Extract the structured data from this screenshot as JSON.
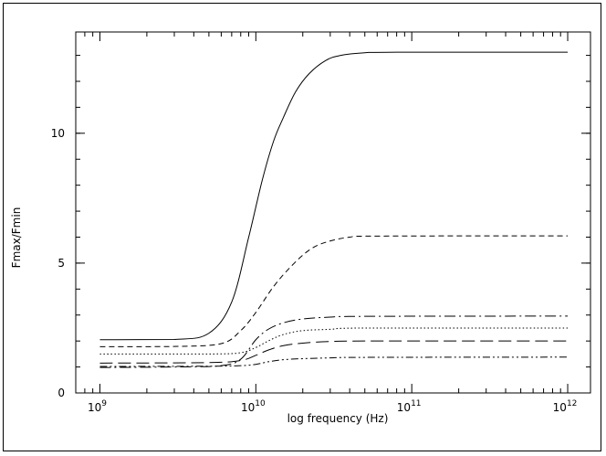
{
  "chart_data": {
    "type": "line",
    "title": "",
    "xlabel": "log frequency (Hz)",
    "ylabel": "Fmax/Fmin",
    "x_scale": "log",
    "xlim": [
      700000000,
      1400000000000
    ],
    "ylim": [
      0,
      13.9
    ],
    "x_ticks": [
      {
        "value": 1000000000,
        "base": "10",
        "exp": "9"
      },
      {
        "value": 10000000000,
        "base": "10",
        "exp": "10"
      },
      {
        "value": 100000000000,
        "base": "10",
        "exp": "11"
      },
      {
        "value": 1000000000000,
        "base": "10",
        "exp": "12"
      }
    ],
    "y_ticks": [
      {
        "value": 0,
        "label": "0"
      },
      {
        "value": 5,
        "label": "5"
      },
      {
        "value": 10,
        "label": "10"
      }
    ],
    "grid": false,
    "legend": "none",
    "series": [
      {
        "style": "solid",
        "x": [
          1000000000,
          3000000000,
          5000000000,
          7000000000,
          9000000000,
          11000000000,
          13000000000,
          15000000000,
          18000000000,
          22000000000,
          28000000000,
          35000000000,
          50000000000,
          80000000000,
          1000000000000
        ],
        "values": [
          2.05,
          2.06,
          2.3,
          3.5,
          6.0,
          8.2,
          9.7,
          10.6,
          11.6,
          12.3,
          12.8,
          13.0,
          13.1,
          13.12,
          13.12
        ]
      },
      {
        "style": "dashed",
        "x": [
          1000000000,
          3000000000,
          6000000000,
          8000000000,
          10000000000,
          13000000000,
          17000000000,
          22000000000,
          28000000000,
          40000000000,
          60000000000,
          1000000000000
        ],
        "values": [
          1.78,
          1.79,
          1.9,
          2.4,
          3.1,
          4.1,
          4.9,
          5.5,
          5.8,
          6.0,
          6.04,
          6.05
        ]
      },
      {
        "style": "dash-dot",
        "x": [
          1000000000,
          3000000000,
          6000000000,
          8000000000,
          10000000000,
          12000000000,
          15000000000,
          20000000000,
          30000000000,
          50000000000,
          1000000000000
        ],
        "values": [
          0.98,
          1.0,
          1.05,
          1.3,
          2.05,
          2.45,
          2.7,
          2.85,
          2.92,
          2.95,
          2.96
        ]
      },
      {
        "style": "dotted",
        "x": [
          1000000000,
          5000000000,
          8000000000,
          10000000000,
          12000000000,
          15000000000,
          20000000000,
          30000000000,
          50000000000,
          1000000000000
        ],
        "values": [
          1.5,
          1.5,
          1.55,
          1.75,
          2.0,
          2.25,
          2.4,
          2.45,
          2.5,
          2.5
        ]
      },
      {
        "style": "long-dash",
        "x": [
          1000000000,
          5000000000,
          8000000000,
          10000000000,
          12000000000,
          15000000000,
          20000000000,
          30000000000,
          50000000000,
          1000000000000
        ],
        "values": [
          1.15,
          1.17,
          1.25,
          1.45,
          1.65,
          1.82,
          1.92,
          1.98,
          2.0,
          2.0
        ]
      },
      {
        "style": "dash-dot-dot",
        "x": [
          1000000000,
          5000000000,
          8000000000,
          10000000000,
          12000000000,
          15000000000,
          20000000000,
          30000000000,
          50000000000,
          1000000000000
        ],
        "values": [
          1.02,
          1.03,
          1.05,
          1.1,
          1.2,
          1.28,
          1.32,
          1.35,
          1.37,
          1.38
        ]
      }
    ]
  }
}
